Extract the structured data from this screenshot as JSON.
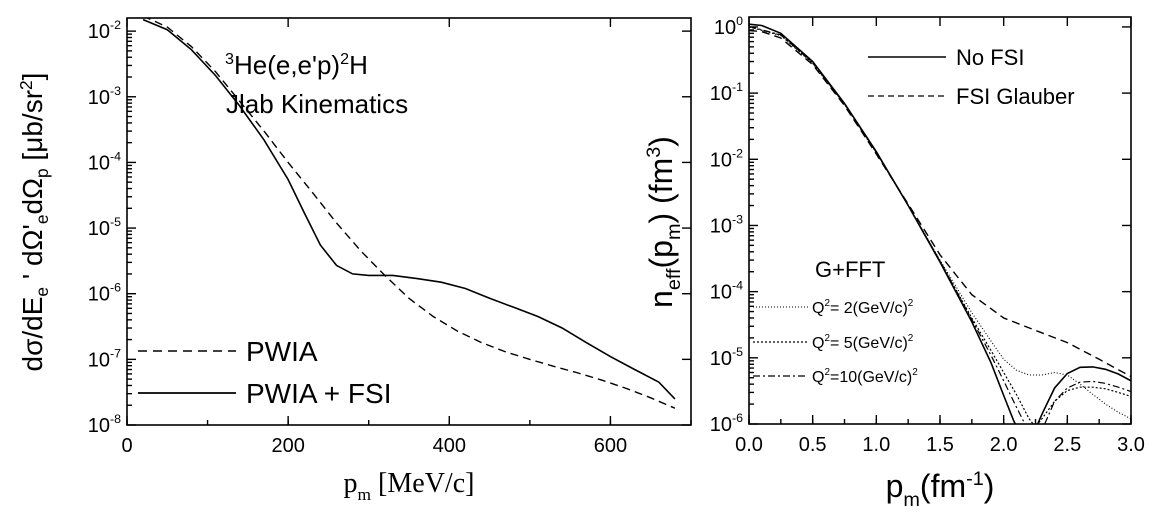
{
  "chart_data": [
    {
      "type": "line",
      "annotation": {
        "line1_super": "3",
        "line1_main": "He(e,e'p)",
        "line1_super2": "2",
        "line1_tail": "H",
        "line2": "Jlab Kinematics"
      },
      "xlabel": {
        "main": "p",
        "sub": "m",
        "tail": " [MeV/c]"
      },
      "ylabel": {
        "a": "dσ/dE",
        "a_sub": "e",
        "b": " ' dΩ'",
        "b_sub": "e",
        "c": "dΩ",
        "c_sub": "p",
        "d": " [μb/sr",
        "d_sup": "2",
        "e": "]"
      },
      "xlim": [
        0,
        700
      ],
      "ylim_log10": [
        -8,
        -1.8
      ],
      "x_ticks": [
        "0",
        "200",
        "400",
        "600"
      ],
      "x_tick_values": [
        0,
        200,
        400,
        600
      ],
      "y_ticks": [
        {
          "base": "10",
          "exp": "-2",
          "value": -2
        },
        {
          "base": "10",
          "exp": "-3",
          "value": -3
        },
        {
          "base": "10",
          "exp": "-4",
          "value": -4
        },
        {
          "base": "10",
          "exp": "-5",
          "value": -5
        },
        {
          "base": "10",
          "exp": "-6",
          "value": -6
        },
        {
          "base": "10",
          "exp": "-7",
          "value": -7
        },
        {
          "base": "10",
          "exp": "-8",
          "value": -8
        }
      ],
      "log_y": true,
      "legend_position": "bottom-left",
      "series": [
        {
          "name": "PWIA",
          "style": "dashed",
          "x": [
            20,
            50,
            80,
            110,
            140,
            170,
            200,
            230,
            260,
            290,
            320,
            350,
            380,
            410,
            440,
            470,
            500,
            530,
            560,
            590,
            620,
            650,
            680
          ],
          "y": [
            0.017,
            0.0115,
            0.0058,
            0.0024,
            0.00085,
            0.0003,
            0.0001,
            3.5e-05,
            1.2e-05,
            4.5e-06,
            1.9e-06,
            8.5e-07,
            4.5e-07,
            2.7e-07,
            1.8e-07,
            1.3e-07,
            1e-07,
            7.8e-08,
            6.2e-08,
            4.8e-08,
            3.6e-08,
            2.6e-08,
            1.8e-08
          ]
        },
        {
          "name": "PWIA + FSI",
          "style": "solid",
          "x": [
            20,
            50,
            80,
            110,
            140,
            170,
            200,
            220,
            240,
            260,
            280,
            300,
            330,
            360,
            390,
            420,
            450,
            480,
            510,
            540,
            570,
            600,
            630,
            660,
            680
          ],
          "y": [
            0.015,
            0.0105,
            0.0052,
            0.0021,
            0.00072,
            0.00022,
            5.5e-05,
            1.7e-05,
            5.5e-06,
            2.7e-06,
            2e-06,
            1.9e-06,
            1.9e-06,
            1.7e-06,
            1.5e-06,
            1.2e-06,
            8.5e-07,
            6.2e-07,
            4.5e-07,
            3e-07,
            1.8e-07,
            1.1e-07,
            7e-08,
            4.5e-08,
            2.5e-08
          ]
        }
      ]
    },
    {
      "type": "line",
      "xlabel": {
        "main": "p",
        "sub": "m",
        "tail1": "(fm",
        "tail_sup": "-1",
        "tail2": ")"
      },
      "ylabel": {
        "a": "n",
        "a_sub": "eff",
        "b": "(p",
        "b_sub": "m",
        "c": ") (fm",
        "c_sup": "3",
        "d": ")"
      },
      "xlim": [
        0,
        3.0
      ],
      "ylim_log10": [
        -6,
        0.15
      ],
      "x_ticks": [
        "0.0",
        "0.5",
        "1.0",
        "1.5",
        "2.0",
        "2.5",
        "3.0"
      ],
      "x_tick_values": [
        0,
        0.5,
        1.0,
        1.5,
        2.0,
        2.5,
        3.0
      ],
      "y_ticks": [
        {
          "base": "10",
          "exp": "0",
          "value": 0
        },
        {
          "base": "10",
          "exp": "-1",
          "value": -1
        },
        {
          "base": "10",
          "exp": "-2",
          "value": -2
        },
        {
          "base": "10",
          "exp": "-3",
          "value": -3
        },
        {
          "base": "10",
          "exp": "-4",
          "value": -4
        },
        {
          "base": "10",
          "exp": "-5",
          "value": -5
        },
        {
          "base": "10",
          "exp": "-6",
          "value": -6
        }
      ],
      "log_y": true,
      "legend_position": "top-right and bottom-left",
      "legend_group_title": "G+FFT",
      "q_labels": [
        {
          "pre": "Q",
          "sup": "2",
          "mid": "= 2(GeV/c)",
          "sup2": "2"
        },
        {
          "pre": "Q",
          "sup": "2",
          "mid": "= 5(GeV/c)",
          "sup2": "2"
        },
        {
          "pre": "Q",
          "sup": "2",
          "mid": "=10(GeV/c)",
          "sup2": "2"
        }
      ],
      "series": [
        {
          "name": "No FSI",
          "style": "solid",
          "x": [
            0.0,
            0.1,
            0.25,
            0.5,
            0.75,
            1.0,
            1.25,
            1.5,
            1.75,
            1.9,
            2.0,
            2.08,
            2.15,
            2.2,
            2.3,
            2.4,
            2.5,
            2.6,
            2.7,
            2.8,
            2.9,
            3.0
          ],
          "y": [
            1.1,
            1.05,
            0.8,
            0.3,
            0.07,
            0.013,
            0.002,
            0.00028,
            3.5e-05,
            8.5e-06,
            2.7e-06,
            1.1e-06,
            6e-07,
            5e-07,
            1.4e-06,
            3.5e-06,
            5.8e-06,
            7.2e-06,
            7.3e-06,
            6.7e-06,
            5.7e-06,
            4.5e-06
          ]
        },
        {
          "name": "FSI Glauber",
          "style": "dashed",
          "x": [
            0.0,
            0.1,
            0.25,
            0.5,
            0.75,
            1.0,
            1.25,
            1.5,
            1.75,
            2.0,
            2.25,
            2.5,
            2.75,
            3.0
          ],
          "y": [
            0.88,
            0.85,
            0.68,
            0.27,
            0.065,
            0.012,
            0.0021,
            0.00036,
            9e-05,
            4e-05,
            2.6e-05,
            1.7e-05,
            9.5e-06,
            5.2e-06
          ]
        },
        {
          "name": "Q2 = 2 (G+FFT)",
          "style": "dotted-fine",
          "x": [
            0.0,
            0.25,
            0.5,
            0.75,
            1.0,
            1.25,
            1.5,
            1.75,
            1.9,
            2.0,
            2.1,
            2.2,
            2.3,
            2.4,
            2.5,
            2.6,
            2.7,
            2.8,
            2.9,
            3.0
          ],
          "y": [
            1.0,
            0.74,
            0.28,
            0.067,
            0.0125,
            0.002,
            0.0003,
            4.8e-05,
            1.8e-05,
            9.5e-06,
            6.5e-06,
            5.5e-06,
            5.5e-06,
            6e-06,
            5.5e-06,
            4e-06,
            2.8e-06,
            2e-06,
            1.5e-06,
            1.2e-06
          ]
        },
        {
          "name": "Q2 = 5 (G+FFT)",
          "style": "dotted",
          "x": [
            0.0,
            0.25,
            0.5,
            0.75,
            1.0,
            1.25,
            1.5,
            1.75,
            1.9,
            2.0,
            2.1,
            2.2,
            2.25,
            2.3,
            2.4,
            2.5,
            2.6,
            2.7,
            2.8,
            2.9,
            3.0
          ],
          "y": [
            1.0,
            0.75,
            0.285,
            0.068,
            0.0127,
            0.002,
            0.00029,
            4e-05,
            1.3e-05,
            6e-06,
            2.8e-06,
            1.2e-06,
            9e-07,
            1.2e-06,
            2.2e-06,
            3.2e-06,
            3.6e-06,
            3.6e-06,
            3.4e-06,
            3e-06,
            2.6e-06
          ]
        },
        {
          "name": "Q2 = 10 (G+FFT)",
          "style": "dash-dot",
          "x": [
            0.0,
            0.25,
            0.5,
            0.75,
            1.0,
            1.25,
            1.5,
            1.75,
            1.9,
            2.0,
            2.1,
            2.2,
            2.25,
            2.3,
            2.4,
            2.5,
            2.6,
            2.7,
            2.8,
            2.9,
            3.0
          ],
          "y": [
            1.02,
            0.76,
            0.29,
            0.069,
            0.0128,
            0.002,
            0.00029,
            3.8e-05,
            1.1e-05,
            4.5e-06,
            1.8e-06,
            7.5e-07,
            5e-07,
            8e-07,
            2.2e-06,
            3.5e-06,
            4.3e-06,
            4.4e-06,
            4.1e-06,
            3.6e-06,
            3.1e-06
          ]
        }
      ]
    }
  ]
}
